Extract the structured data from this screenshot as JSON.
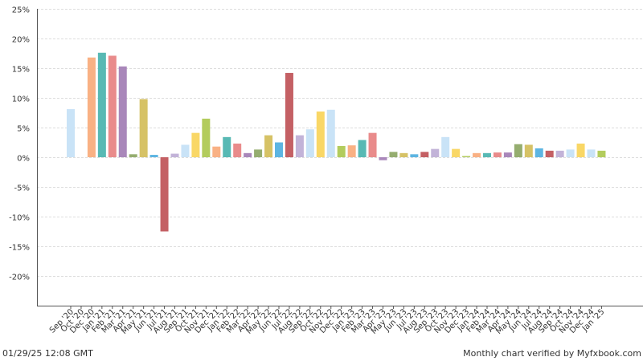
{
  "footer": {
    "timestamp": "01/29/25 12:08 GMT",
    "verified": "Monthly chart verified by Myfxbook.com"
  },
  "chart_data": {
    "type": "bar",
    "title": "",
    "xlabel": "",
    "ylabel": "",
    "ylim": [
      -25,
      25
    ],
    "yticks": [
      -20,
      -15,
      -10,
      -5,
      0,
      5,
      10,
      15,
      20,
      25
    ],
    "ytick_labels": [
      "-20%",
      "-15%",
      "-10%",
      "-5%",
      "0%",
      "5%",
      "10%",
      "15%",
      "20%",
      "25%"
    ],
    "grid": true,
    "categories": [
      "Sep '20",
      "Oct '20",
      "Dec '20",
      "Jan '21",
      "Feb '21",
      "Mar '21",
      "Apr '21",
      "May '21",
      "Jun '21",
      "Jul '21",
      "Aug '21",
      "Sep '21",
      "Oct '21",
      "Nov '21",
      "Dec '21",
      "Jan '22",
      "Feb '22",
      "Mar '22",
      "Apr '22",
      "May '22",
      "Jun '22",
      "Jul '22",
      "Aug '22",
      "Sep '22",
      "Oct '22",
      "Nov '22",
      "Dec '22",
      "Jan '23",
      "Feb '23",
      "Mar '23",
      "Apr '23",
      "May '23",
      "Jun '23",
      "Jul '23",
      "Aug '23",
      "Sep '23",
      "Oct '23",
      "Nov '23",
      "Dec '23",
      "Jan '24",
      "Feb '24",
      "Mar '24",
      "Apr '24",
      "May '24",
      "Jun '24",
      "Jul '24",
      "Aug '24",
      "Sep '24",
      "Oct '24",
      "Nov '24",
      "Dec '24",
      "Jan '25"
    ],
    "values": [
      8.1,
      0,
      16.8,
      17.6,
      17.1,
      15.3,
      0.5,
      9.8,
      0.4,
      -12.5,
      0.6,
      2.1,
      4.1,
      6.5,
      1.8,
      3.4,
      2.3,
      0.7,
      1.3,
      3.7,
      2.5,
      14.2,
      3.7,
      4.7,
      7.7,
      8.0,
      1.9,
      2.0,
      2.9,
      4.1,
      -0.5,
      0.9,
      0.7,
      0.5,
      0.9,
      1.4,
      3.4,
      1.4,
      0.2,
      0.7,
      0.7,
      0.8,
      0.8,
      2.2,
      2.1,
      1.5,
      1.1,
      1.1,
      1.3,
      2.3,
      1.3,
      1.1
    ],
    "colors": [
      "#c9e3f7",
      "#b3cc5d",
      "#f9b184",
      "#58b9b4",
      "#e98b8b",
      "#a987ba",
      "#95ad6f",
      "#d6c266",
      "#5db5e2",
      "#c46064",
      "#c2b3d8",
      "#c9e3f7",
      "#f9d766",
      "#b3cc5d",
      "#f9b184",
      "#58b9b4",
      "#e98b8b",
      "#a987ba",
      "#95ad6f",
      "#d6c266",
      "#5db5e2",
      "#c46064",
      "#c2b3d8",
      "#c9e3f7",
      "#f9d766"
    ]
  }
}
